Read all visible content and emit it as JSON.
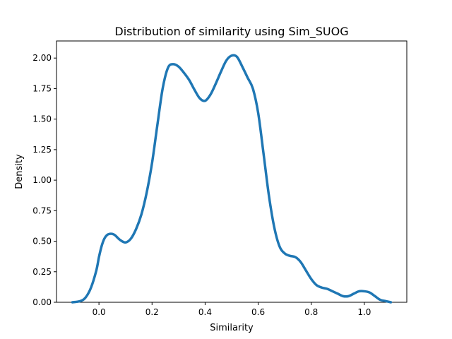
{
  "chart_data": {
    "type": "line",
    "title": "Distribution of similarity using Sim_SUOG",
    "xlabel": "Similarity",
    "ylabel": "Density",
    "xlim": [
      -0.16,
      1.16
    ],
    "ylim": [
      0,
      2.14
    ],
    "grid": false,
    "legend": "none",
    "x_ticks": [
      "0.0",
      "0.2",
      "0.4",
      "0.6",
      "0.8",
      "1.0"
    ],
    "y_ticks": [
      "0.00",
      "0.25",
      "0.50",
      "0.75",
      "1.00",
      "1.25",
      "1.50",
      "1.75",
      "2.00"
    ],
    "series": [
      {
        "color": "#1f77b4",
        "x": [
          -0.1,
          -0.07,
          -0.05,
          -0.03,
          -0.01,
          0.0,
          0.01,
          0.02,
          0.03,
          0.04,
          0.05,
          0.06,
          0.08,
          0.1,
          0.12,
          0.14,
          0.16,
          0.18,
          0.2,
          0.22,
          0.24,
          0.26,
          0.28,
          0.3,
          0.32,
          0.34,
          0.36,
          0.38,
          0.4,
          0.42,
          0.44,
          0.46,
          0.48,
          0.5,
          0.52,
          0.54,
          0.56,
          0.58,
          0.6,
          0.62,
          0.64,
          0.66,
          0.68,
          0.7,
          0.72,
          0.74,
          0.76,
          0.78,
          0.8,
          0.82,
          0.84,
          0.86,
          0.88,
          0.9,
          0.92,
          0.94,
          0.96,
          0.98,
          1.0,
          1.02,
          1.04,
          1.06,
          1.08,
          1.1
        ],
        "y": [
          0.0,
          0.01,
          0.04,
          0.12,
          0.26,
          0.37,
          0.46,
          0.52,
          0.55,
          0.56,
          0.56,
          0.55,
          0.51,
          0.49,
          0.52,
          0.6,
          0.72,
          0.9,
          1.14,
          1.45,
          1.75,
          1.92,
          1.95,
          1.93,
          1.88,
          1.82,
          1.74,
          1.67,
          1.65,
          1.7,
          1.79,
          1.89,
          1.98,
          2.02,
          2.01,
          1.93,
          1.84,
          1.75,
          1.55,
          1.22,
          0.88,
          0.62,
          0.46,
          0.4,
          0.38,
          0.37,
          0.33,
          0.26,
          0.19,
          0.14,
          0.12,
          0.11,
          0.09,
          0.07,
          0.05,
          0.05,
          0.07,
          0.09,
          0.09,
          0.08,
          0.05,
          0.02,
          0.01,
          0.0
        ]
      }
    ]
  }
}
